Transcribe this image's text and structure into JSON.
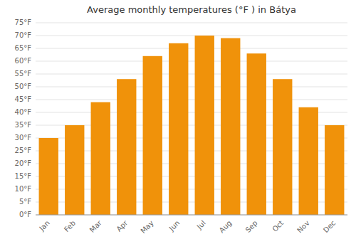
{
  "chart_data": {
    "type": "bar",
    "title": "Average monthly temperatures (°F ) in Bátya",
    "categories": [
      "Jan",
      "Feb",
      "Mar",
      "Apr",
      "May",
      "Jun",
      "Jul",
      "Aug",
      "Sep",
      "Oct",
      "Nov",
      "Dec"
    ],
    "values": [
      30,
      35,
      44,
      53,
      62,
      67,
      70,
      69,
      63,
      53,
      42,
      35
    ],
    "color": "#F0920A",
    "ylim": [
      0,
      75
    ],
    "yticks": [
      {
        "value": 0,
        "label": "0°F"
      },
      {
        "value": 5,
        "label": "5°F"
      },
      {
        "value": 10,
        "label": "10°F"
      },
      {
        "value": 15,
        "label": "15°F"
      },
      {
        "value": 20,
        "label": "20°F"
      },
      {
        "value": 25,
        "label": "25°F"
      },
      {
        "value": 30,
        "label": "30°F"
      },
      {
        "value": 35,
        "label": "35°F"
      },
      {
        "value": 40,
        "label": "40°F"
      },
      {
        "value": 45,
        "label": "45°F"
      },
      {
        "value": 50,
        "label": "50°F"
      },
      {
        "value": 55,
        "label": "55°F"
      },
      {
        "value": 60,
        "label": "60°F"
      },
      {
        "value": 65,
        "label": "65°F"
      },
      {
        "value": 70,
        "label": "70°F"
      },
      {
        "value": 75,
        "label": "75°F"
      }
    ],
    "grid": true
  }
}
